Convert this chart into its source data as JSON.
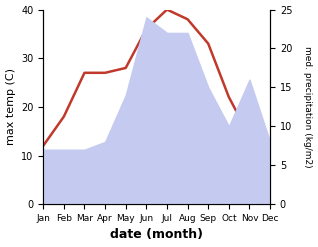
{
  "months": [
    "Jan",
    "Feb",
    "Mar",
    "Apr",
    "May",
    "Jun",
    "Jul",
    "Aug",
    "Sep",
    "Oct",
    "Nov",
    "Dec"
  ],
  "temp": [
    12,
    18,
    27,
    27,
    28,
    36,
    40,
    38,
    33,
    22,
    14,
    13
  ],
  "precip": [
    7,
    7,
    7,
    8,
    14,
    24,
    22,
    22,
    15,
    10,
    16,
    8
  ],
  "temp_color": "#c0392b",
  "precip_fill_color": "#c5caf0",
  "temp_ylim": [
    0,
    40
  ],
  "precip_ylim": [
    0,
    25
  ],
  "xlabel": "date (month)",
  "ylabel_left": "max temp (C)",
  "ylabel_right": "med. precipitation (kg/m2)",
  "bg_color": "#ffffff"
}
